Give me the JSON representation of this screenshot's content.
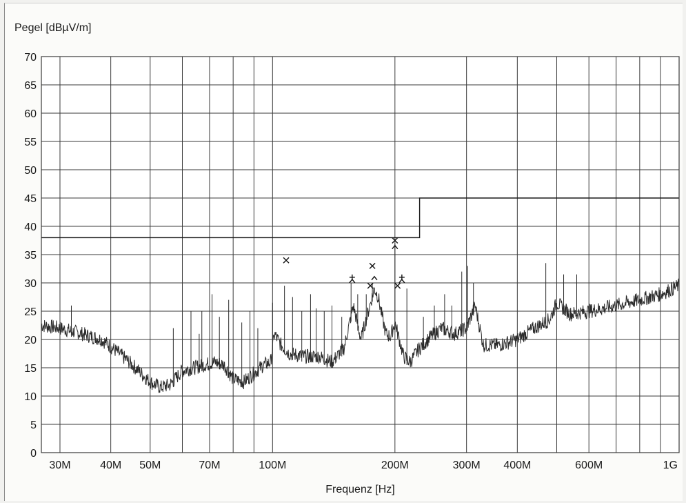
{
  "chart_data": {
    "type": "line",
    "ylabel": "Pegel [dBµV/m]",
    "xlabel": "Frequenz [Hz]",
    "x_scale": "log",
    "xlim": [
      27000000,
      1000000000
    ],
    "ylim": [
      0,
      70
    ],
    "grid": true,
    "y_ticks": [
      0,
      5,
      10,
      15,
      20,
      25,
      30,
      35,
      40,
      45,
      50,
      55,
      60,
      65,
      70
    ],
    "x_tick_labels": [
      {
        "value": 30000000,
        "label": "30M"
      },
      {
        "value": 40000000,
        "label": "40M"
      },
      {
        "value": 50000000,
        "label": "50M"
      },
      {
        "value": 70000000,
        "label": "70M"
      },
      {
        "value": 100000000,
        "label": "100M"
      },
      {
        "value": 200000000,
        "label": "200M"
      },
      {
        "value": 300000000,
        "label": "300M"
      },
      {
        "value": 400000000,
        "label": "400M"
      },
      {
        "value": 600000000,
        "label": "600M"
      },
      {
        "value": 1000000000,
        "label": "1G"
      }
    ],
    "x_gridlines": [
      30000000,
      40000000,
      50000000,
      60000000,
      70000000,
      80000000,
      90000000,
      100000000,
      200000000,
      300000000,
      400000000,
      500000000,
      600000000,
      700000000,
      800000000,
      900000000,
      1000000000
    ],
    "series": [
      {
        "role": "spectrum",
        "x": [
          27000000,
          30000000,
          34000000,
          38000000,
          42000000,
          46000000,
          50000000,
          53000000,
          56000000,
          60000000,
          64000000,
          68000000,
          72000000,
          76000000,
          80000000,
          85000000,
          90000000,
          95000000,
          99000000,
          101000000,
          105000000,
          110000000,
          120000000,
          130000000,
          140000000,
          150000000,
          158000000,
          165000000,
          172000000,
          178000000,
          182000000,
          186000000,
          190000000,
          195000000,
          200000000,
          205000000,
          210000000,
          218000000,
          230000000,
          245000000,
          260000000,
          280000000,
          300000000,
          315000000,
          330000000,
          360000000,
          400000000,
          440000000,
          480000000,
          500000000,
          540000000,
          600000000,
          650000000,
          700000000,
          800000000,
          900000000,
          1000000000
        ],
        "y": [
          22.5,
          22,
          21,
          20,
          17.5,
          15,
          12.5,
          11.5,
          12,
          14.5,
          15,
          15.5,
          16,
          15.5,
          13,
          12.5,
          14,
          15.5,
          16,
          21,
          19,
          17.5,
          17,
          17,
          16,
          18.5,
          26,
          20,
          25,
          29,
          27.5,
          24,
          21,
          20.5,
          23,
          20,
          17,
          16,
          18.5,
          20.5,
          22,
          21,
          22,
          26,
          19,
          19,
          20,
          22,
          23.5,
          26.5,
          24.5,
          25,
          25.5,
          26,
          27,
          28,
          29.5
        ]
      },
      {
        "role": "limit",
        "x": [
          27000000,
          230000000,
          230000000,
          1000000000
        ],
        "y": [
          38,
          38,
          45,
          45
        ]
      },
      {
        "role": "spikes",
        "x": [
          32000000,
          57000000,
          63000000,
          66000000,
          67000000,
          71000000,
          74000000,
          78000000,
          84000000,
          88000000,
          92000000,
          100000000,
          107000000,
          112000000,
          118000000,
          124000000,
          128000000,
          134000000,
          140000000,
          148000000,
          156000000,
          162000000,
          170000000,
          176000000,
          200000000,
          214000000,
          235000000,
          250000000,
          265000000,
          276000000,
          292000000,
          302000000,
          312000000,
          470000000,
          520000000,
          560000000
        ],
        "y": [
          26,
          22,
          25,
          21,
          25,
          28,
          24,
          27,
          23,
          25,
          22,
          26.5,
          29.5,
          27.5,
          25,
          28,
          25.5,
          25,
          26,
          24,
          30,
          28,
          28,
          30,
          37,
          29,
          24,
          26,
          28,
          26,
          32,
          33,
          30,
          33.5,
          31.5,
          31.5
        ]
      }
    ],
    "markers": [
      {
        "x": 108000000,
        "y": 34,
        "symbol": "x"
      },
      {
        "x": 157000000,
        "y": 31,
        "symbol": "+"
      },
      {
        "x": 157000000,
        "y": 30.5,
        "symbol": "^"
      },
      {
        "x": 176000000,
        "y": 33,
        "symbol": "x"
      },
      {
        "x": 178000000,
        "y": 31,
        "symbol": "^"
      },
      {
        "x": 174000000,
        "y": 29.5,
        "symbol": "x"
      },
      {
        "x": 200000000,
        "y": 37.5,
        "symbol": "x"
      },
      {
        "x": 200000000,
        "y": 36.5,
        "symbol": "^"
      },
      {
        "x": 203000000,
        "y": 29.5,
        "symbol": "x"
      },
      {
        "x": 208000000,
        "y": 31,
        "symbol": "+"
      },
      {
        "x": 208000000,
        "y": 30.5,
        "symbol": "^"
      }
    ]
  },
  "colors": {
    "background": "#fbfbf9",
    "plot_background": "#ffffff",
    "grid": "#3a3a3a",
    "spectrum": "#2b2b2b",
    "limit": "#1a1a1a",
    "marker": "#111111"
  }
}
